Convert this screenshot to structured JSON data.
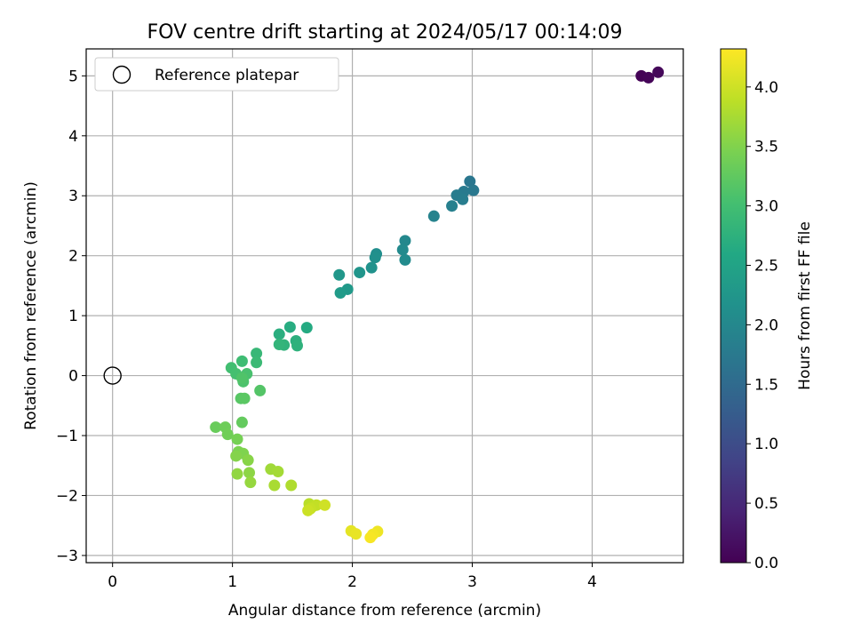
{
  "chart_data": {
    "type": "scatter",
    "title": "FOV centre drift starting at 2024/05/17 00:14:09",
    "xlabel": "Angular distance from reference (arcmin)",
    "ylabel": "Rotation from reference (arcmin)",
    "xlim": [
      -0.22,
      4.76
    ],
    "ylim": [
      -3.12,
      5.45
    ],
    "xticks": [
      0,
      1,
      2,
      3,
      4
    ],
    "yticks": [
      -3,
      -2,
      -1,
      0,
      1,
      2,
      3,
      4,
      5
    ],
    "grid": true,
    "legend": {
      "placement": "upper-left",
      "entries": [
        "Reference platepar"
      ]
    },
    "reference_point": {
      "x": 0,
      "y": 0,
      "label": "Reference platepar"
    },
    "colorbar": {
      "label": "Hours from first FF file",
      "colormap": "viridis",
      "range": [
        0.0,
        4.32
      ],
      "ticks": [
        0.0,
        0.5,
        1.0,
        1.5,
        2.0,
        2.5,
        3.0,
        3.5,
        4.0
      ]
    },
    "points": [
      {
        "x": 4.41,
        "y": 5.0,
        "c": 0.02
      },
      {
        "x": 4.47,
        "y": 4.97,
        "c": 0.05
      },
      {
        "x": 4.55,
        "y": 5.06,
        "c": 0.08
      },
      {
        "x": 2.98,
        "y": 3.24,
        "c": 1.7
      },
      {
        "x": 3.01,
        "y": 3.09,
        "c": 1.73
      },
      {
        "x": 2.93,
        "y": 3.07,
        "c": 1.76
      },
      {
        "x": 2.87,
        "y": 3.01,
        "c": 1.79
      },
      {
        "x": 2.92,
        "y": 2.94,
        "c": 1.82
      },
      {
        "x": 2.83,
        "y": 2.83,
        "c": 1.86
      },
      {
        "x": 2.68,
        "y": 2.66,
        "c": 1.92
      },
      {
        "x": 2.44,
        "y": 2.25,
        "c": 2.0
      },
      {
        "x": 2.42,
        "y": 2.1,
        "c": 2.04
      },
      {
        "x": 2.44,
        "y": 1.93,
        "c": 2.07
      },
      {
        "x": 2.2,
        "y": 2.03,
        "c": 2.12
      },
      {
        "x": 2.19,
        "y": 1.97,
        "c": 2.15
      },
      {
        "x": 2.16,
        "y": 1.8,
        "c": 2.19
      },
      {
        "x": 2.06,
        "y": 1.72,
        "c": 2.24
      },
      {
        "x": 1.89,
        "y": 1.68,
        "c": 2.28
      },
      {
        "x": 1.96,
        "y": 1.44,
        "c": 2.32
      },
      {
        "x": 1.9,
        "y": 1.38,
        "c": 2.36
      },
      {
        "x": 1.62,
        "y": 0.8,
        "c": 2.63
      },
      {
        "x": 1.48,
        "y": 0.81,
        "c": 2.66
      },
      {
        "x": 1.39,
        "y": 0.69,
        "c": 2.7
      },
      {
        "x": 1.53,
        "y": 0.58,
        "c": 2.73
      },
      {
        "x": 1.54,
        "y": 0.5,
        "c": 2.76
      },
      {
        "x": 1.43,
        "y": 0.51,
        "c": 2.79
      },
      {
        "x": 1.39,
        "y": 0.52,
        "c": 2.82
      },
      {
        "x": 1.2,
        "y": 0.37,
        "c": 2.88
      },
      {
        "x": 1.2,
        "y": 0.22,
        "c": 2.92
      },
      {
        "x": 1.08,
        "y": 0.24,
        "c": 2.96
      },
      {
        "x": 0.99,
        "y": 0.13,
        "c": 3.0
      },
      {
        "x": 1.03,
        "y": 0.03,
        "c": 3.03
      },
      {
        "x": 1.12,
        "y": 0.03,
        "c": 3.06
      },
      {
        "x": 1.09,
        "y": -0.1,
        "c": 3.09
      },
      {
        "x": 1.08,
        "y": -0.04,
        "c": 3.12
      },
      {
        "x": 1.23,
        "y": -0.25,
        "c": 3.15
      },
      {
        "x": 1.07,
        "y": -0.38,
        "c": 3.18
      },
      {
        "x": 1.1,
        "y": -0.38,
        "c": 3.21
      },
      {
        "x": 1.08,
        "y": -0.78,
        "c": 3.28
      },
      {
        "x": 0.86,
        "y": -0.86,
        "c": 3.32
      },
      {
        "x": 0.94,
        "y": -0.86,
        "c": 3.35
      },
      {
        "x": 0.96,
        "y": -0.98,
        "c": 3.38
      },
      {
        "x": 1.04,
        "y": -1.06,
        "c": 3.42
      },
      {
        "x": 1.05,
        "y": -1.27,
        "c": 3.46
      },
      {
        "x": 1.09,
        "y": -1.3,
        "c": 3.49
      },
      {
        "x": 1.03,
        "y": -1.34,
        "c": 3.52
      },
      {
        "x": 1.13,
        "y": -1.41,
        "c": 3.55
      },
      {
        "x": 1.14,
        "y": -1.62,
        "c": 3.58
      },
      {
        "x": 1.04,
        "y": -1.64,
        "c": 3.61
      },
      {
        "x": 1.15,
        "y": -1.78,
        "c": 3.64
      },
      {
        "x": 1.32,
        "y": -1.56,
        "c": 3.7
      },
      {
        "x": 1.38,
        "y": -1.6,
        "c": 3.73
      },
      {
        "x": 1.35,
        "y": -1.83,
        "c": 3.76
      },
      {
        "x": 1.49,
        "y": -1.83,
        "c": 3.8
      },
      {
        "x": 1.64,
        "y": -2.14,
        "c": 3.86
      },
      {
        "x": 1.67,
        "y": -2.18,
        "c": 3.89
      },
      {
        "x": 1.7,
        "y": -2.16,
        "c": 3.92
      },
      {
        "x": 1.65,
        "y": -2.22,
        "c": 3.95
      },
      {
        "x": 1.63,
        "y": -2.25,
        "c": 3.98
      },
      {
        "x": 1.77,
        "y": -2.16,
        "c": 4.01
      },
      {
        "x": 1.99,
        "y": -2.59,
        "c": 4.15
      },
      {
        "x": 2.03,
        "y": -2.64,
        "c": 4.18
      },
      {
        "x": 2.21,
        "y": -2.6,
        "c": 4.22
      },
      {
        "x": 2.17,
        "y": -2.65,
        "c": 4.25
      },
      {
        "x": 2.15,
        "y": -2.7,
        "c": 4.28
      }
    ]
  }
}
